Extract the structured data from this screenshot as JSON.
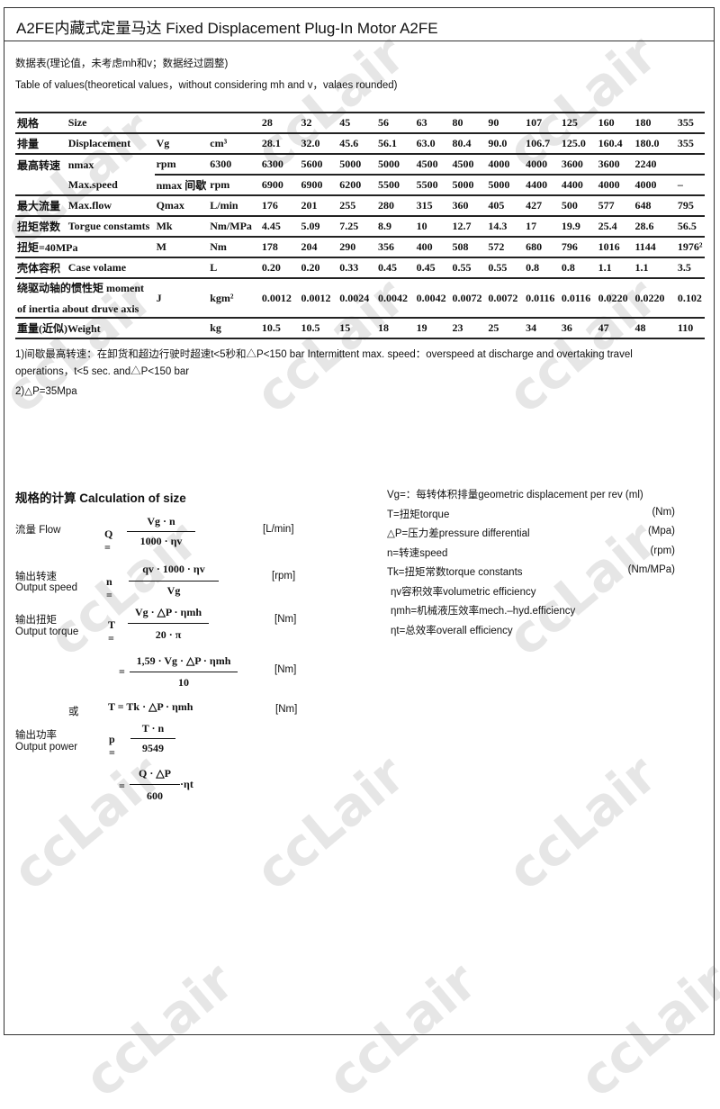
{
  "title": "A2FE内藏式定量马达  Fixed Displacement Plug-In Motor A2FE",
  "intro_zh": "数据表(理论值，未考虑mh和v；数据经过圆整)",
  "intro_en": "Table of values(theoretical values，without considering mh and v，valaes rounded)",
  "table": {
    "rows": [
      {
        "zh": "规格",
        "en": "Size",
        "sym": "",
        "unit": "",
        "values": [
          "28",
          "32",
          "45",
          "56",
          "63",
          "80",
          "90",
          "107",
          "125",
          "160",
          "180",
          "355"
        ]
      },
      {
        "zh": "排量",
        "en": "Displacement",
        "sym": "Vg",
        "unit": "cm³",
        "values": [
          "28.1",
          "32.0",
          "45.6",
          "56.1",
          "63.0",
          "80.4",
          "90.0",
          "106.7",
          "125.0",
          "160.4",
          "180.0",
          "355"
        ]
      },
      {
        "zh": "最高转速",
        "en": "nmax",
        "sym": "rpm",
        "unit": "6300",
        "values": [
          "6300",
          "5600",
          "5000",
          "5000",
          "4500",
          "4500",
          "4000",
          "4000",
          "3600",
          "3600",
          "2240",
          ""
        ]
      },
      {
        "zh": "",
        "en": "Max.speed",
        "sym": "nmax 间歇",
        "unit": "rpm",
        "first": "6900",
        "values": [
          "6900",
          "6900",
          "6200",
          "5500",
          "5500",
          "5000",
          "5000",
          "4400",
          "4400",
          "4000",
          "4000",
          "–"
        ]
      },
      {
        "zh": "最大流量",
        "en": "Max.flow",
        "sym": "Qmax",
        "unit": "L/min",
        "values": [
          "176",
          "201",
          "255",
          "280",
          "315",
          "360",
          "405",
          "427",
          "500",
          "577",
          "648",
          "795"
        ]
      },
      {
        "zh": "扭矩常数",
        "en": "Torgue constamts",
        "sym": "Mk",
        "unit": "Nm/MPa",
        "values": [
          "4.45",
          "5.09",
          "7.25",
          "8.9",
          "10",
          "12.7",
          "14.3",
          "17",
          "19.9",
          "25.4",
          "28.6",
          "56.5"
        ]
      },
      {
        "zh": "扭矩=40MPa",
        "en": "",
        "sym": "M",
        "unit": "Nm",
        "values": [
          "178",
          "204",
          "290",
          "356",
          "400",
          "508",
          "572",
          "680",
          "796",
          "1016",
          "1144",
          "1976²"
        ]
      },
      {
        "zh": "壳体容积",
        "en": "Case volame",
        "sym": "",
        "unit": "L",
        "values": [
          "0.20",
          "0.20",
          "0.33",
          "0.45",
          "0.45",
          "0.55",
          "0.55",
          "0.8",
          "0.8",
          "1.1",
          "1.1",
          "3.5"
        ]
      },
      {
        "zh": "绕驱动轴的惯性矩 moment",
        "en": "of inertia about druve axis",
        "sym": "J",
        "unit": "kgm²",
        "values": [
          "0.0012",
          "0.0012",
          "0.0024",
          "0.0042",
          "0.0042",
          "0.0072",
          "0.0072",
          "0.0116",
          "0.0116",
          "0.0220",
          "0.0220",
          "0.102"
        ]
      },
      {
        "zh": "重量(近似)Weight",
        "en": "",
        "sym": "",
        "unit": "kg",
        "values": [
          "10.5",
          "10.5",
          "15",
          "18",
          "19",
          "23",
          "25",
          "34",
          "36",
          "47",
          "48",
          "110"
        ]
      }
    ]
  },
  "note1a": "1)间歇最高转速：在卸货和超边行驶时超速t<5秒和△P<150 bar Intermittent max. speed：overspeed at discharge and overtaking travel",
  "note1b": "operations，t<5 sec. and△P<150 bar",
  "note2": "2)△P=35Mpa",
  "calc": {
    "heading": "规格的计算  Calculation of size",
    "flow_label": "流量  Flow",
    "flow_num": "Vg · n",
    "flow_den": "1000 · ηv",
    "flow_lhs": "Q =",
    "flow_unit": "[L/min]",
    "speed_zh": "输出转速",
    "speed_en": "Output speed",
    "speed_lhs": "n =",
    "speed_num": "qv · 1000 · ηv",
    "speed_den": "Vg",
    "speed_unit": "[rpm]",
    "torque_zh": "输出扭矩",
    "torque_en": "Output torque",
    "torque_lhs": "T =",
    "torque_num": "Vg · △P · ηmh",
    "torque_den": "20 · π",
    "torque_unit": "[Nm]",
    "torque2_lhs": "=",
    "torque2_num": "1,59 · Vg · △P · ηmh",
    "torque2_den": "10",
    "torque2_unit": "[Nm]",
    "or": "或",
    "torque3": "T = Tk · △P · ηmh",
    "torque3_unit": "[Nm]",
    "power_zh": "输出功率",
    "power_en": "Output power",
    "power_lhs": "p =",
    "power_num": "T · n",
    "power_den": "9549",
    "power2_lhs": "=",
    "power2_num": "Q · △P",
    "power2_den": "600",
    "power2_tail": "·ηt"
  },
  "legend": [
    {
      "text": "Vg=：每转体积排量geometric displacement per rev (ml)",
      "unit": ""
    },
    {
      "text": "T=扭矩torque",
      "unit": "(Nm)"
    },
    {
      "text": "△P=压力差pressure differential",
      "unit": "(Mpa)"
    },
    {
      "text": "n=转速speed",
      "unit": "(rpm)"
    },
    {
      "text": "Tk=扭矩常数torque constants",
      "unit": "(Nm/MPa)"
    },
    {
      "text": "ηv容积效率volumetric efficiency",
      "unit": ""
    },
    {
      "text": "ηmh=机械液压效率mech.–hyd.efficiency",
      "unit": ""
    },
    {
      "text": "ηt=总效率overall efficiency",
      "unit": ""
    }
  ],
  "watermark": "ccLair"
}
